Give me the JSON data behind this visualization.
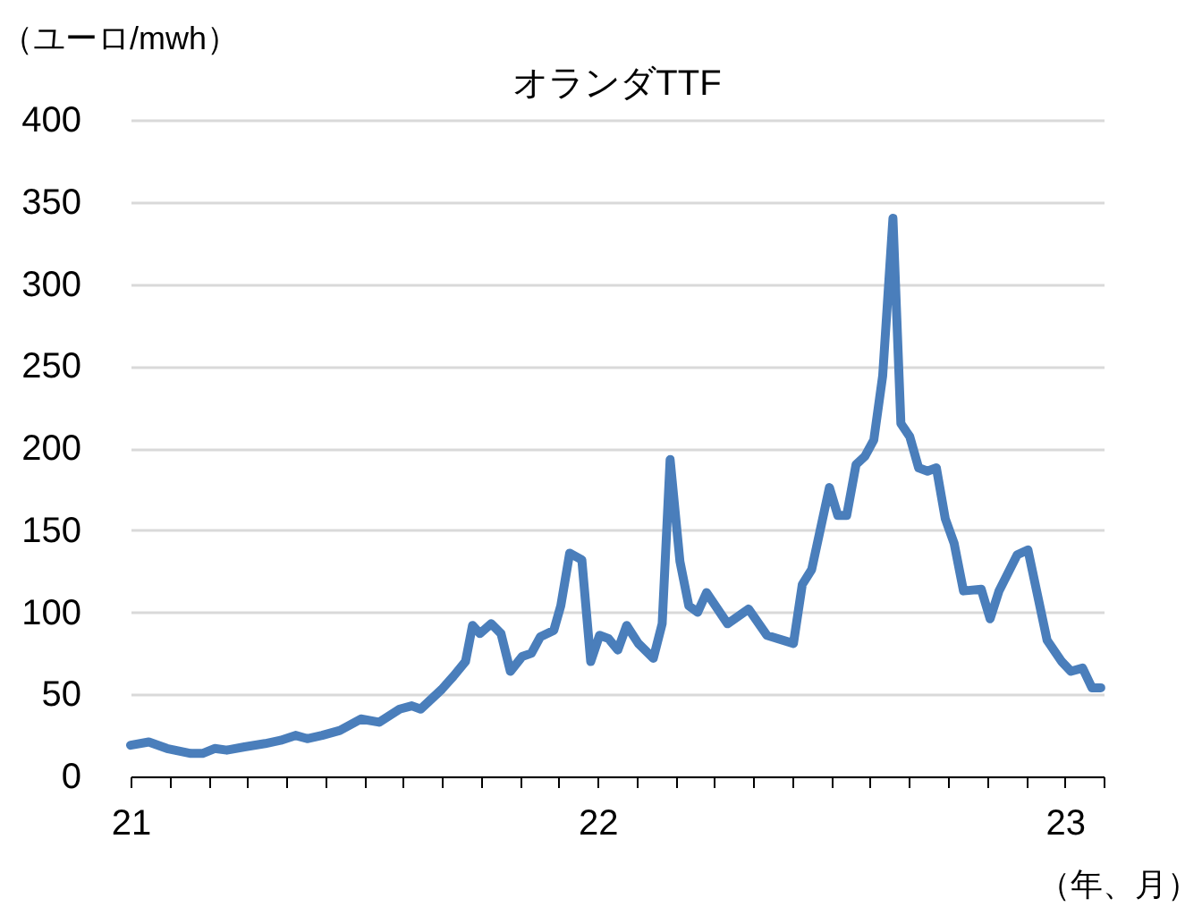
{
  "chart_data": {
    "type": "line",
    "title": "オランダTTF",
    "ylabel": "（ユーロ/mwh）",
    "xlabel": "（年、月）",
    "x": [
      21.0,
      21.039,
      21.078,
      21.129,
      21.154,
      21.18,
      21.206,
      21.244,
      21.288,
      21.321,
      21.353,
      21.378,
      21.41,
      21.448,
      21.493,
      21.532,
      21.576,
      21.602,
      21.621,
      21.666,
      21.691,
      21.717,
      21.732,
      21.748,
      21.772,
      21.793,
      21.813,
      21.838,
      21.858,
      21.877,
      21.906,
      21.921,
      21.94,
      21.966,
      21.985,
      22.004,
      22.023,
      22.043,
      22.062,
      22.087,
      22.119,
      22.138,
      22.155,
      22.176,
      22.195,
      22.214,
      22.233,
      22.278,
      22.323,
      22.362,
      22.419,
      22.438,
      22.458,
      22.496,
      22.514,
      22.533,
      22.553,
      22.572,
      22.591,
      22.61,
      22.632,
      22.649,
      22.668,
      22.687,
      22.706,
      22.725,
      22.744,
      22.763,
      22.783,
      22.821,
      22.84,
      22.859,
      22.898,
      22.921,
      22.962,
      22.993,
      23.013,
      23.038,
      23.058,
      23.077
    ],
    "series": [
      {
        "color": "#4a7ebb",
        "values": [
          19,
          21,
          17,
          14,
          14,
          17,
          16,
          18,
          20,
          22,
          25,
          23,
          25,
          28,
          35,
          33,
          41,
          43,
          41,
          53,
          61,
          70,
          92,
          87,
          93,
          87,
          64,
          73,
          75,
          85,
          89,
          104,
          136,
          132,
          70,
          86,
          84,
          77,
          92,
          81,
          72,
          93,
          193,
          131,
          104,
          100,
          112,
          93,
          102,
          86,
          81,
          117,
          126,
          176,
          159,
          159,
          190,
          195,
          205,
          244,
          340,
          215,
          207,
          188,
          186,
          188,
          157,
          142,
          113,
          114,
          96,
          113,
          135,
          138,
          83,
          70,
          64,
          66,
          54,
          54
        ]
      }
    ],
    "xlim": [
      21,
      23.083
    ],
    "xticks": [
      21,
      {
        "value": 21.083,
        "label": null
      },
      {
        "value": 21.167,
        "label": null
      },
      {
        "value": 21.25,
        "label": null
      },
      {
        "value": 21.333,
        "label": null
      },
      {
        "value": 21.417,
        "label": null
      },
      {
        "value": 21.5,
        "label": null
      },
      {
        "value": 21.583,
        "label": null
      },
      {
        "value": 21.667,
        "label": null
      },
      {
        "value": 21.75,
        "label": null
      },
      {
        "value": 21.833,
        "label": null
      },
      {
        "value": 21.917,
        "label": null
      },
      22,
      {
        "value": 22.083,
        "label": null
      },
      {
        "value": 22.167,
        "label": null
      },
      {
        "value": 22.25,
        "label": null
      },
      {
        "value": 22.333,
        "label": null
      },
      {
        "value": 22.417,
        "label": null
      },
      {
        "value": 22.5,
        "label": null
      },
      {
        "value": 22.583,
        "label": null
      },
      {
        "value": 22.667,
        "label": null
      },
      {
        "value": 22.75,
        "label": null
      },
      {
        "value": 22.833,
        "label": null
      },
      {
        "value": 22.917,
        "label": null
      },
      23,
      {
        "value": 23.083,
        "label": null
      }
    ],
    "ylim": [
      0,
      400
    ],
    "yticks": [
      0,
      50,
      100,
      150,
      200,
      250,
      300,
      350,
      400
    ],
    "grid": "y",
    "marker": "none",
    "line_style": "solid"
  }
}
